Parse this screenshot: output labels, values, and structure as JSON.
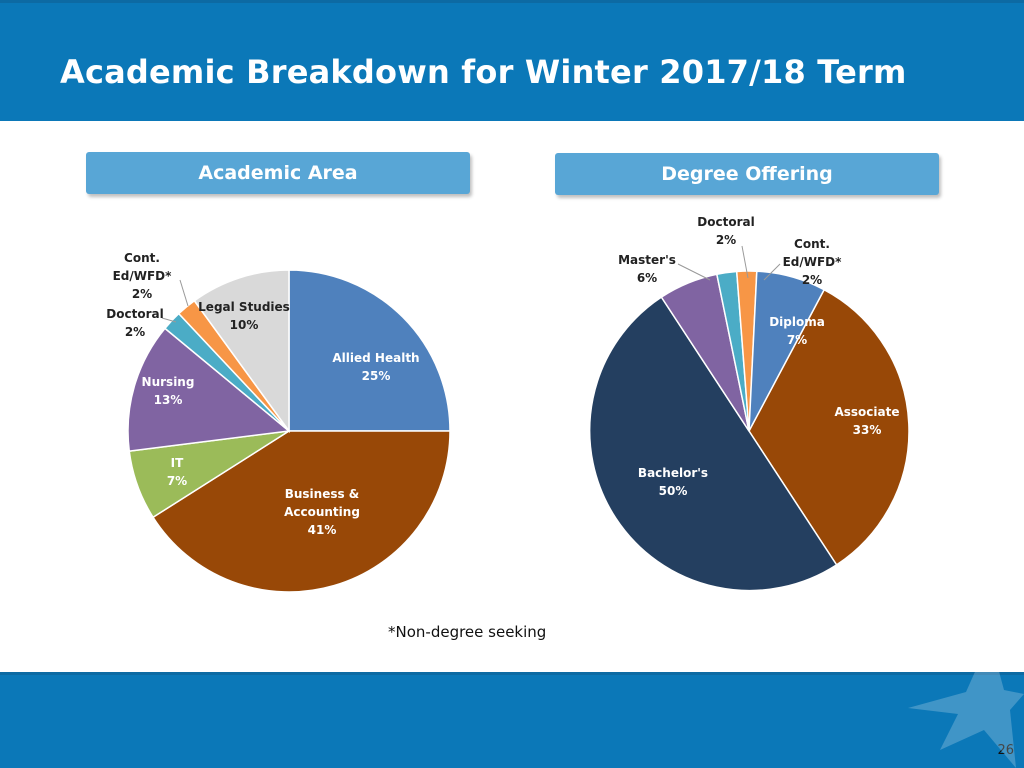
{
  "header": {
    "title": "Academic Breakdown for Winter 2017/18 Term"
  },
  "sections": {
    "left_label": "Academic Area",
    "right_label": "Degree Offering"
  },
  "footnote": "*Non-degree seeking",
  "page_number": "26",
  "colors": {
    "header_bg": "#0b78b8",
    "label_bg": "#58a6d6"
  },
  "chart_data": [
    {
      "type": "pie",
      "title": "Academic Area",
      "start_angle_deg": 0,
      "direction": "clockwise",
      "slices": [
        {
          "label": "Allied Health",
          "value": 25,
          "value_label": "25%",
          "color": "#4f81bd"
        },
        {
          "label": "Business & Accounting",
          "value": 41,
          "value_label": "41%",
          "color": "#984807"
        },
        {
          "label": "IT",
          "value": 7,
          "value_label": "7%",
          "color": "#9bbb59"
        },
        {
          "label": "Nursing",
          "value": 13,
          "value_label": "13%",
          "color": "#8064a2"
        },
        {
          "label": "Doctoral",
          "value": 2,
          "value_label": "2%",
          "color": "#4bacc6"
        },
        {
          "label": "Cont. Ed/WFD*",
          "value": 2,
          "value_label": "2%",
          "color": "#f79646"
        },
        {
          "label": "Legal Studies",
          "value": 10,
          "value_label": "10%",
          "color": "#d9d9d9"
        }
      ]
    },
    {
      "type": "pie",
      "title": "Degree Offering",
      "start_angle_deg": 28,
      "direction": "clockwise",
      "slices": [
        {
          "label": "Associate",
          "value": 33,
          "value_label": "33%",
          "color": "#984807"
        },
        {
          "label": "Bachelor's",
          "value": 50,
          "value_label": "50%",
          "color": "#243f60"
        },
        {
          "label": "Master's",
          "value": 6,
          "value_label": "6%",
          "color": "#8064a2"
        },
        {
          "label": "Doctoral",
          "value": 2,
          "value_label": "2%",
          "color": "#4bacc6"
        },
        {
          "label": "Cont. Ed/WFD*",
          "value": 2,
          "value_label": "2%",
          "color": "#f79646"
        },
        {
          "label": "Diploma",
          "value": 7,
          "value_label": "7%",
          "color": "#4f81bd"
        }
      ]
    }
  ]
}
